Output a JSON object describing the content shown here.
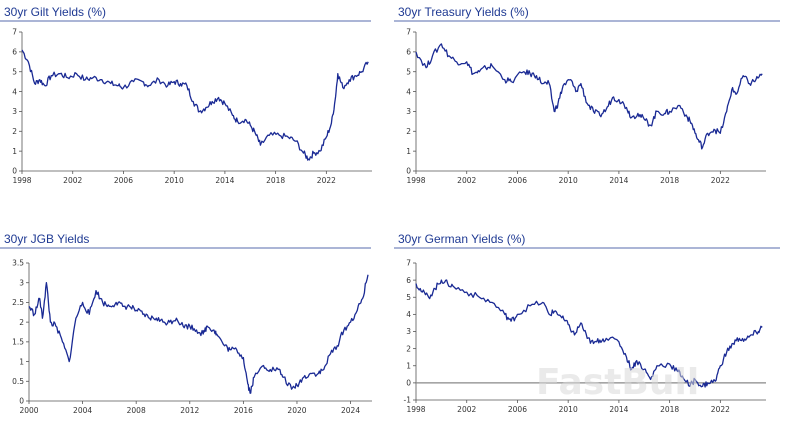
{
  "colors": {
    "title": "#1f3a93",
    "series": "#1a2a94",
    "axis": "#555555",
    "zero_line": "#888888"
  },
  "watermark": "FastBull",
  "chart_data": [
    {
      "type": "line",
      "title": "30yr Gilt Yields (%)",
      "xlabel": "",
      "ylabel": "",
      "xlim": [
        1998,
        2025.6
      ],
      "ylim": [
        0,
        7
      ],
      "yticks": [
        "0",
        "1",
        "2",
        "3",
        "4",
        "5",
        "6",
        "7"
      ],
      "xticks": [
        "1998",
        "2002",
        "2006",
        "2010",
        "2014",
        "2018",
        "2022"
      ],
      "series": [
        {
          "name": "30yr Gilt Yield",
          "x": [
            1998,
            1998.5,
            1999,
            1999.4,
            1999.8,
            2000.3,
            2001,
            2001.6,
            2002.3,
            2003,
            2003.6,
            2004.3,
            2005,
            2005.6,
            2006,
            2006.8,
            2007.5,
            2008,
            2008.8,
            2009.5,
            2010,
            2010.5,
            2011,
            2011.5,
            2012,
            2012.5,
            2013,
            2013.5,
            2014,
            2014.6,
            2015,
            2015.6,
            2016,
            2016.4,
            2016.8,
            2017.5,
            2018.3,
            2019,
            2019.6,
            2020.2,
            2020.6,
            2021,
            2021.5,
            2022,
            2022.4,
            2022.7,
            2022.9,
            2023.3,
            2023.8,
            2024.3,
            2024.8,
            2025.3
          ],
          "values": [
            6.1,
            5.5,
            4.4,
            4.6,
            4.3,
            4.8,
            4.9,
            4.7,
            4.9,
            4.6,
            4.7,
            4.6,
            4.4,
            4.3,
            4.2,
            4.5,
            4.5,
            4.3,
            4.6,
            4.3,
            4.5,
            4.4,
            4.3,
            3.5,
            3.0,
            3.2,
            3.5,
            3.7,
            3.4,
            2.8,
            2.5,
            2.6,
            2.3,
            1.9,
            1.3,
            1.8,
            1.8,
            1.7,
            1.5,
            0.9,
            0.6,
            0.9,
            1.0,
            1.7,
            2.4,
            3.6,
            4.9,
            4.2,
            4.6,
            4.8,
            5.0,
            5.5
          ]
        }
      ]
    },
    {
      "type": "line",
      "title": "30yr Treasury Yields (%)",
      "xlabel": "",
      "ylabel": "",
      "xlim": [
        1998,
        2025.6
      ],
      "ylim": [
        0,
        7
      ],
      "yticks": [
        "0",
        "1",
        "2",
        "3",
        "4",
        "5",
        "6",
        "7"
      ],
      "xticks": [
        "1998",
        "2002",
        "2006",
        "2010",
        "2014",
        "2018",
        "2022"
      ],
      "series": [
        {
          "name": "30yr Treasury Yield",
          "x": [
            1998,
            1998.8,
            1999.3,
            2000,
            2000.6,
            2001.2,
            2002,
            2002.5,
            2003,
            2003.5,
            2004,
            2005,
            2005.5,
            2006.5,
            2007,
            2007.5,
            2008,
            2008.5,
            2008.9,
            2009.2,
            2009.6,
            2010.2,
            2010.6,
            2011,
            2011.5,
            2012,
            2012.5,
            2013,
            2013.5,
            2014,
            2014.6,
            2015,
            2015.5,
            2016,
            2016.5,
            2017,
            2017.6,
            2018,
            2018.8,
            2019.4,
            2019.8,
            2020.2,
            2020.6,
            2021,
            2021.5,
            2022,
            2022.5,
            2022.9,
            2023.3,
            2023.8,
            2024.3,
            2024.8,
            2025.3
          ],
          "values": [
            6.0,
            5.2,
            5.8,
            6.4,
            5.8,
            5.5,
            5.5,
            4.9,
            5.0,
            5.2,
            5.3,
            4.6,
            4.5,
            5.0,
            4.9,
            4.8,
            4.4,
            4.4,
            3.0,
            3.4,
            4.3,
            4.6,
            4.0,
            4.4,
            3.4,
            3.0,
            2.8,
            3.1,
            3.7,
            3.6,
            3.2,
            2.7,
            2.9,
            2.6,
            2.3,
            3.0,
            2.9,
            3.0,
            3.3,
            2.7,
            2.3,
            1.6,
            1.2,
            1.9,
            2.1,
            1.9,
            3.0,
            4.1,
            3.9,
            4.8,
            4.4,
            4.6,
            4.9
          ]
        }
      ]
    },
    {
      "type": "line",
      "title": "30yr JGB Yields",
      "xlabel": "",
      "ylabel": "",
      "xlim": [
        2000,
        2025.6
      ],
      "ylim": [
        0,
        3.5
      ],
      "yticks": [
        "0",
        "0.5",
        "1",
        "1.5",
        "2",
        "2.5",
        "3",
        "3.5"
      ],
      "xticks": [
        "2000",
        "2004",
        "2008",
        "2012",
        "2016",
        "2020",
        "2024"
      ],
      "series": [
        {
          "name": "30yr JGB Yield",
          "x": [
            2000,
            2000.4,
            2000.8,
            2001,
            2001.3,
            2001.6,
            2002,
            2002.5,
            2003,
            2003.5,
            2004,
            2004.5,
            2005,
            2005.5,
            2006,
            2006.5,
            2007,
            2007.5,
            2008,
            2008.5,
            2009,
            2009.5,
            2010,
            2010.5,
            2011,
            2011.5,
            2012,
            2012.5,
            2013,
            2013.3,
            2013.8,
            2014,
            2014.6,
            2015,
            2015.5,
            2016,
            2016.3,
            2016.5,
            2016.8,
            2017.5,
            2018,
            2018.6,
            2019,
            2019.6,
            2020,
            2020.5,
            2021,
            2021.6,
            2022,
            2022.5,
            2023,
            2023.5,
            2024,
            2024.5,
            2024.9,
            2025.3
          ],
          "values": [
            2.4,
            2.2,
            2.6,
            2.1,
            3.0,
            2.0,
            1.9,
            1.5,
            1.0,
            2.1,
            2.5,
            2.2,
            2.8,
            2.5,
            2.4,
            2.5,
            2.4,
            2.4,
            2.3,
            2.2,
            2.1,
            2.1,
            2.0,
            2.0,
            2.1,
            1.9,
            1.9,
            1.8,
            1.7,
            1.9,
            1.8,
            1.7,
            1.4,
            1.3,
            1.3,
            1.1,
            0.5,
            0.2,
            0.6,
            0.9,
            0.8,
            0.8,
            0.6,
            0.3,
            0.4,
            0.6,
            0.7,
            0.7,
            0.8,
            1.2,
            1.4,
            1.8,
            2.0,
            2.3,
            2.6,
            3.2
          ]
        }
      ]
    },
    {
      "type": "line",
      "title": "30yr German Yields (%)",
      "xlabel": "",
      "ylabel": "",
      "xlim": [
        1998,
        2025.6
      ],
      "ylim": [
        -1,
        7
      ],
      "yticks": [
        "-1",
        "0",
        "1",
        "2",
        "3",
        "4",
        "5",
        "6",
        "7"
      ],
      "xticks": [
        "1998",
        "2002",
        "2006",
        "2010",
        "2014",
        "2018",
        "2022"
      ],
      "zero_line": true,
      "series": [
        {
          "name": "30yr German Yield",
          "x": [
            1998,
            1998.5,
            1999,
            1999.5,
            2000,
            2000.5,
            2001,
            2002,
            2003,
            2004,
            2005,
            2005.5,
            2006,
            2007,
            2008,
            2008.5,
            2009,
            2009.5,
            2010,
            2010.5,
            2011,
            2011.5,
            2012,
            2012.5,
            2013,
            2014,
            2014.6,
            2015,
            2015.4,
            2016,
            2016.5,
            2017,
            2018,
            2018.6,
            2019,
            2019.6,
            2020,
            2020.6,
            2021,
            2021.6,
            2022,
            2022.5,
            2023,
            2023.5,
            2024,
            2024.5,
            2025,
            2025.3
          ],
          "values": [
            5.8,
            5.3,
            5.0,
            5.5,
            6.0,
            5.8,
            5.6,
            5.3,
            5.0,
            4.7,
            4.0,
            3.6,
            4.0,
            4.5,
            4.7,
            4.0,
            4.2,
            3.8,
            3.4,
            2.8,
            3.5,
            2.6,
            2.3,
            2.5,
            2.6,
            2.4,
            1.5,
            0.8,
            1.3,
            0.8,
            0.2,
            1.0,
            1.1,
            0.7,
            0.4,
            -0.2,
            0.2,
            -0.2,
            0.0,
            0.1,
            1.0,
            1.8,
            2.3,
            2.6,
            2.5,
            2.8,
            3.0,
            3.3
          ]
        }
      ]
    }
  ]
}
